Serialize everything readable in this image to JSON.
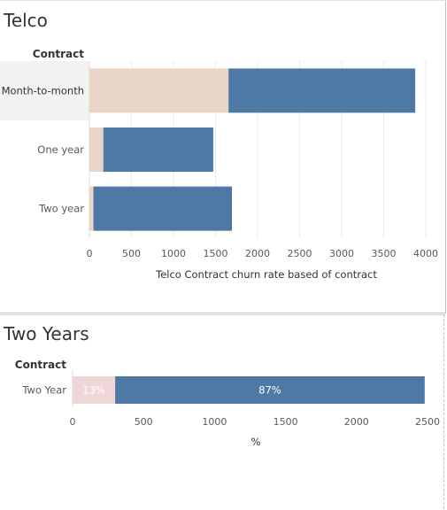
{
  "colors": {
    "not_churned": "#4f79a5",
    "churned": "#e9d4c8",
    "churned_two_year": "#efd6d8",
    "grid": "#ebebeb",
    "highlight_row": "#f2f2f2",
    "axis_text": "#595959",
    "label_dark": "#333333"
  },
  "panels": [
    {
      "title": "Telco",
      "chart_data": {
        "type": "bar",
        "orientation": "horizontal",
        "stacked": true,
        "row_header": "Contract",
        "categories": [
          "Month-to-month",
          "One year",
          "Two year"
        ],
        "series": [
          {
            "key": "churned",
            "values": [
              1655,
              166,
              48
            ]
          },
          {
            "key": "not_churned",
            "values": [
              2220,
              1307,
              1647
            ]
          }
        ],
        "xlabel": "Telco Contract churn rate based of contract",
        "xlim": [
          0,
          4000
        ],
        "xticks": [
          0,
          500,
          1000,
          1500,
          2000,
          2500,
          3000,
          3500,
          4000
        ],
        "grid": true,
        "highlighted_category": "Month-to-month"
      }
    },
    {
      "title": "Two Years",
      "chart_data": {
        "type": "bar",
        "orientation": "horizontal",
        "stacked": true,
        "row_header": "Contract",
        "categories": [
          "Two Year"
        ],
        "series": [
          {
            "key": "churned",
            "values": [
              300
            ],
            "labels": [
              "13%"
            ]
          },
          {
            "key": "not_churned",
            "values": [
              2180
            ],
            "labels": [
              "87%"
            ]
          }
        ],
        "xlabel": "%",
        "xlim": [
          0,
          2500
        ],
        "xticks": [
          0,
          500,
          1000,
          1500,
          2000,
          2500
        ],
        "grid": false
      }
    }
  ]
}
